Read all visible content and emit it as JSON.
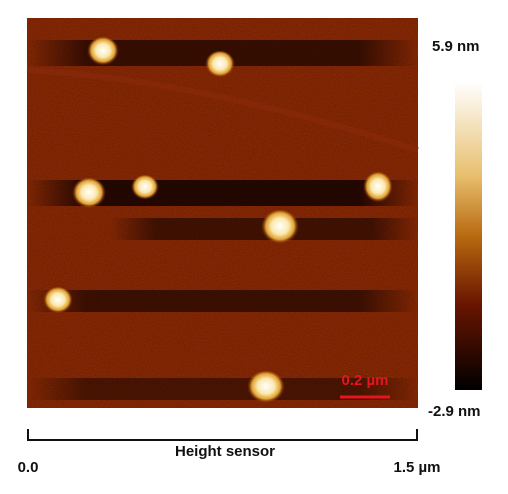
{
  "colorbar": {
    "max_label": "5.9 nm",
    "min_label": "-2.9 nm"
  },
  "scale_bar": {
    "label": "0.2 µm"
  },
  "x_axis": {
    "title": "Height sensor",
    "start_label": "0.0",
    "end_label": "1.5 µm"
  }
}
